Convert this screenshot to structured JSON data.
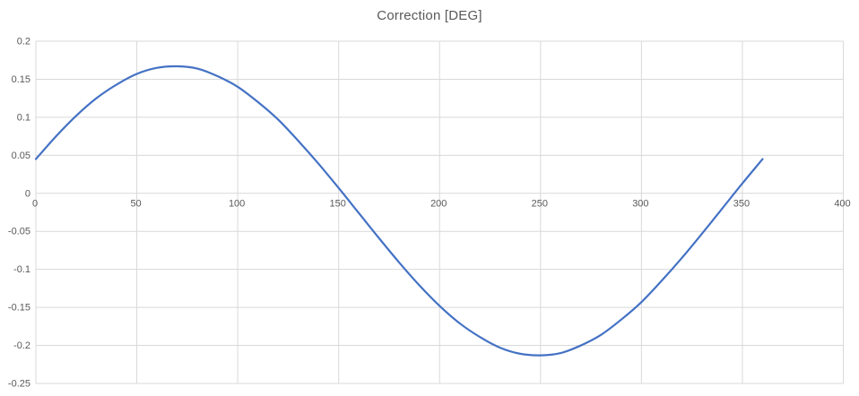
{
  "chart_data": {
    "type": "line",
    "title": "Correction [DEG]",
    "xlabel": "",
    "ylabel": "",
    "grid": true,
    "legend": false,
    "colors": {
      "line": "#4472C4",
      "gridline": "#D9D9D9",
      "tick_label": "#595959",
      "title": "#595959",
      "background": "#FFFFFF"
    },
    "x_axis": {
      "min": 0,
      "max": 400,
      "tick_step": 50,
      "ticks": [
        0,
        50,
        100,
        150,
        200,
        250,
        300,
        350,
        400
      ],
      "tick_labels": [
        "0",
        "50",
        "100",
        "150",
        "200",
        "250",
        "300",
        "350",
        "400"
      ],
      "labels_at_zero_line": true
    },
    "y_axis": {
      "min": -0.25,
      "max": 0.2,
      "tick_step": 0.05,
      "ticks": [
        0.2,
        0.15,
        0.1,
        0.05,
        0,
        -0.05,
        -0.1,
        -0.15,
        -0.2,
        -0.25
      ],
      "tick_labels": [
        "0.2",
        "0.15",
        "0.1",
        "0.05",
        "0",
        "-0.05",
        "-0.1",
        "-0.15",
        "-0.2",
        "-0.25"
      ]
    },
    "series": [
      {
        "name": "Correction",
        "color": "#4472C4",
        "x": [
          0,
          10,
          20,
          30,
          40,
          50,
          60,
          70,
          80,
          90,
          100,
          110,
          120,
          130,
          140,
          150,
          160,
          170,
          180,
          190,
          200,
          210,
          220,
          230,
          240,
          250,
          260,
          270,
          280,
          290,
          300,
          310,
          320,
          330,
          340,
          350,
          360
        ],
        "y": [
          0.045,
          0.075,
          0.102,
          0.125,
          0.143,
          0.157,
          0.165,
          0.167,
          0.164,
          0.154,
          0.14,
          0.12,
          0.097,
          0.069,
          0.039,
          0.007,
          -0.026,
          -0.059,
          -0.091,
          -0.121,
          -0.148,
          -0.171,
          -0.189,
          -0.203,
          -0.211,
          -0.213,
          -0.21,
          -0.2,
          -0.186,
          -0.166,
          -0.143,
          -0.115,
          -0.085,
          -0.053,
          -0.02,
          0.013,
          0.045
        ]
      }
    ],
    "notable_points": {
      "start": [
        0,
        0.045
      ],
      "peak": [
        70,
        0.167
      ],
      "zero_crossing_down": 153,
      "minimum": [
        250,
        -0.213
      ],
      "zero_crossing_up": 346,
      "end": [
        360,
        0.045
      ]
    }
  }
}
